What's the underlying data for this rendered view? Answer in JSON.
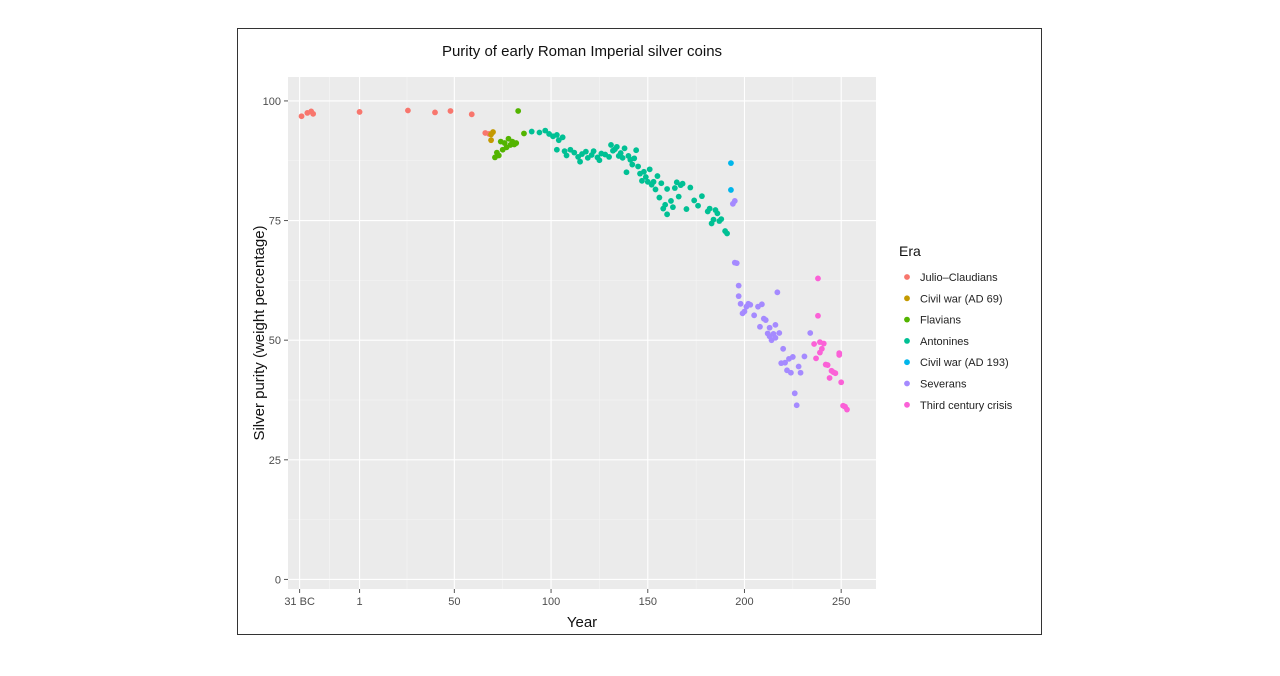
{
  "chart_data": {
    "type": "scatter",
    "title": "Purity of early Roman Imperial silver coins",
    "xlabel": "Year",
    "ylabel": "Silver purity (weight percentage)",
    "xlim": [
      -36,
      268
    ],
    "ylim": [
      -2,
      105
    ],
    "x_ticks": [
      {
        "value": -30,
        "label": "31 BC"
      },
      {
        "value": 1,
        "label": "1"
      },
      {
        "value": 50,
        "label": "50"
      },
      {
        "value": 100,
        "label": "100"
      },
      {
        "value": 150,
        "label": "150"
      },
      {
        "value": 200,
        "label": "200"
      },
      {
        "value": 250,
        "label": "250"
      }
    ],
    "y_ticks": [
      {
        "value": 0,
        "label": "0"
      },
      {
        "value": 25,
        "label": "25"
      },
      {
        "value": 50,
        "label": "50"
      },
      {
        "value": 75,
        "label": "75"
      },
      {
        "value": 100,
        "label": "100"
      }
    ],
    "legend_title": "Era",
    "legend_position": "right",
    "grid": true,
    "series": [
      {
        "name": "Julio–Claudians",
        "color": "#F8766D",
        "points": [
          [
            -29,
            96.8
          ],
          [
            -26,
            97.5
          ],
          [
            -24,
            97.8
          ],
          [
            -23,
            97.3
          ],
          [
            1,
            97.7
          ],
          [
            26,
            98.0
          ],
          [
            40,
            97.6
          ],
          [
            48,
            97.9
          ],
          [
            59,
            97.2
          ],
          [
            66,
            93.3
          ],
          [
            68,
            93.1
          ]
        ]
      },
      {
        "name": "Civil war (AD 69)",
        "color": "#C49A00",
        "points": [
          [
            69,
            93.0
          ],
          [
            69,
            91.8
          ],
          [
            70,
            93.5
          ]
        ]
      },
      {
        "name": "Flavians",
        "color": "#53B400",
        "points": [
          [
            71,
            88.2
          ],
          [
            72,
            89.2
          ],
          [
            73,
            88.6
          ],
          [
            74,
            91.5
          ],
          [
            75,
            89.8
          ],
          [
            76,
            91.2
          ],
          [
            77,
            90.3
          ],
          [
            78,
            92.1
          ],
          [
            79,
            90.8
          ],
          [
            80,
            91.5
          ],
          [
            81,
            90.9
          ],
          [
            82,
            91.2
          ],
          [
            83,
            97.9
          ],
          [
            86,
            93.2
          ]
        ]
      },
      {
        "name": "Antonines",
        "color": "#00C094",
        "points": [
          [
            90,
            93.6
          ],
          [
            94,
            93.4
          ],
          [
            97,
            93.8
          ],
          [
            99,
            93.1
          ],
          [
            101,
            92.6
          ],
          [
            103,
            92.9
          ],
          [
            104,
            91.8
          ],
          [
            106,
            92.4
          ],
          [
            103,
            89.8
          ],
          [
            107,
            89.5
          ],
          [
            108,
            88.6
          ],
          [
            110,
            89.8
          ],
          [
            112,
            89.2
          ],
          [
            114,
            88.3
          ],
          [
            115,
            87.3
          ],
          [
            116,
            88.9
          ],
          [
            118,
            89.4
          ],
          [
            119,
            88.1
          ],
          [
            121,
            88.7
          ],
          [
            122,
            89.5
          ],
          [
            124,
            88.2
          ],
          [
            125,
            87.6
          ],
          [
            126,
            89.0
          ],
          [
            128,
            88.8
          ],
          [
            130,
            88.3
          ],
          [
            131,
            90.8
          ],
          [
            132,
            89.6
          ],
          [
            133,
            89.9
          ],
          [
            134,
            90.4
          ],
          [
            135,
            88.5
          ],
          [
            136,
            89.1
          ],
          [
            137,
            88.1
          ],
          [
            138,
            90.1
          ],
          [
            139,
            85.1
          ],
          [
            140,
            88.5
          ],
          [
            141,
            87.7
          ],
          [
            142,
            86.7
          ],
          [
            143,
            88.0
          ],
          [
            144,
            89.7
          ],
          [
            145,
            86.3
          ],
          [
            146,
            84.8
          ],
          [
            147,
            83.3
          ],
          [
            148,
            85.2
          ],
          [
            149,
            84.1
          ],
          [
            150,
            83.1
          ],
          [
            151,
            85.7
          ],
          [
            152,
            82.5
          ],
          [
            153,
            83.1
          ],
          [
            154,
            81.5
          ],
          [
            155,
            84.3
          ],
          [
            156,
            79.8
          ],
          [
            157,
            82.8
          ],
          [
            158,
            77.5
          ],
          [
            159,
            78.3
          ],
          [
            160,
            76.3
          ],
          [
            160,
            81.6
          ],
          [
            162,
            79.1
          ],
          [
            163,
            77.8
          ],
          [
            164,
            81.8
          ],
          [
            165,
            83.0
          ],
          [
            166,
            80.0
          ],
          [
            167,
            82.4
          ],
          [
            168,
            82.7
          ],
          [
            170,
            77.4
          ],
          [
            172,
            81.9
          ],
          [
            174,
            79.2
          ],
          [
            176,
            78.1
          ],
          [
            178,
            80.1
          ],
          [
            181,
            76.9
          ],
          [
            182,
            77.5
          ],
          [
            183,
            74.4
          ],
          [
            184,
            75.2
          ],
          [
            185,
            77.2
          ],
          [
            186,
            76.5
          ],
          [
            187,
            74.9
          ],
          [
            188,
            75.3
          ],
          [
            190,
            72.8
          ],
          [
            191,
            72.3
          ]
        ]
      },
      {
        "name": "Civil war (AD 193)",
        "color": "#00B6EB",
        "points": [
          [
            193,
            87.0
          ],
          [
            193,
            81.4
          ]
        ]
      },
      {
        "name": "Severans",
        "color": "#A58AFF",
        "points": [
          [
            194,
            78.5
          ],
          [
            195,
            79.1
          ],
          [
            195,
            66.2
          ],
          [
            196,
            66.1
          ],
          [
            197,
            61.4
          ],
          [
            197,
            59.2
          ],
          [
            198,
            57.6
          ],
          [
            199,
            55.6
          ],
          [
            200,
            56.0
          ],
          [
            201,
            57.0
          ],
          [
            202,
            57.6
          ],
          [
            203,
            57.4
          ],
          [
            205,
            55.2
          ],
          [
            207,
            57.0
          ],
          [
            208,
            52.8
          ],
          [
            209,
            57.5
          ],
          [
            210,
            54.5
          ],
          [
            211,
            54.2
          ],
          [
            212,
            51.4
          ],
          [
            213,
            50.8
          ],
          [
            213,
            52.6
          ],
          [
            214,
            50.0
          ],
          [
            215,
            51.3
          ],
          [
            216,
            50.5
          ],
          [
            216,
            53.2
          ],
          [
            217,
            60.0
          ],
          [
            218,
            51.5
          ],
          [
            219,
            45.2
          ],
          [
            220,
            48.2
          ],
          [
            221,
            45.3
          ],
          [
            222,
            43.7
          ],
          [
            223,
            46.1
          ],
          [
            224,
            43.2
          ],
          [
            225,
            46.5
          ],
          [
            226,
            38.9
          ],
          [
            227,
            36.4
          ],
          [
            228,
            44.5
          ],
          [
            229,
            43.2
          ],
          [
            231,
            46.6
          ],
          [
            234,
            51.5
          ]
        ]
      },
      {
        "name": "Third century crisis",
        "color": "#FB61D7",
        "points": [
          [
            236,
            49.2
          ],
          [
            237,
            46.2
          ],
          [
            238,
            62.9
          ],
          [
            238,
            55.1
          ],
          [
            239,
            49.6
          ],
          [
            239,
            47.4
          ],
          [
            240,
            48.2
          ],
          [
            241,
            49.3
          ],
          [
            242,
            44.9
          ],
          [
            243,
            44.8
          ],
          [
            244,
            42.1
          ],
          [
            245,
            43.6
          ],
          [
            246,
            43.3
          ],
          [
            247,
            43.1
          ],
          [
            249,
            47.3
          ],
          [
            249,
            46.9
          ],
          [
            250,
            41.2
          ],
          [
            251,
            36.3
          ],
          [
            252,
            36.1
          ],
          [
            253,
            35.5
          ]
        ]
      }
    ]
  }
}
